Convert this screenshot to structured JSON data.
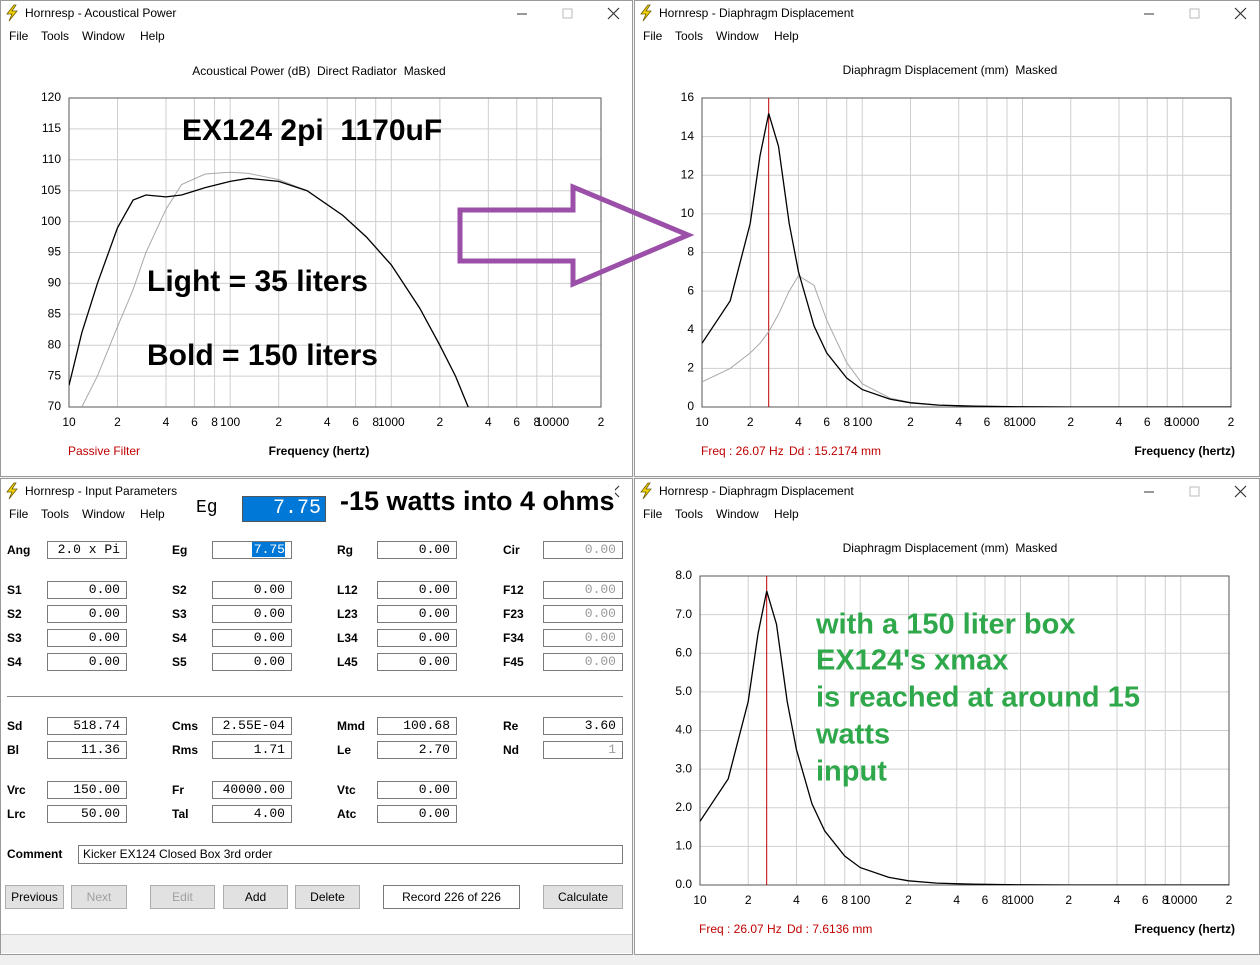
{
  "windows": [
    {
      "title": "Hornresp - Acoustical Power",
      "menu": [
        "File",
        "Tools",
        "Window",
        "Help"
      ]
    },
    {
      "title": "Hornresp - Diaphragm Displacement",
      "menu": [
        "File",
        "Tools",
        "Window",
        "Help"
      ]
    },
    {
      "title": "Hornresp - Input Parameters",
      "menu": [
        "File",
        "Tools",
        "Window",
        "Help"
      ]
    },
    {
      "title": "Hornresp - Diaphragm Displacement",
      "menu": [
        "File",
        "Tools",
        "Window",
        "Help"
      ]
    }
  ],
  "chart_data": [
    {
      "type": "line",
      "title": "Acoustical Power (dB)  Direct Radiator  Masked",
      "xlabel": "Frequency (hertz)",
      "xscale": "log",
      "grid": true,
      "xlim": [
        10,
        20000
      ],
      "ylim": [
        70,
        120
      ],
      "xticks": [
        10,
        {
          "value": 20,
          "label": "2"
        },
        {
          "value": 40,
          "label": "4"
        },
        {
          "value": 60,
          "label": "6"
        },
        {
          "value": 80,
          "label": "8"
        },
        100,
        {
          "value": 200,
          "label": "2"
        },
        {
          "value": 400,
          "label": "4"
        },
        {
          "value": 600,
          "label": "6"
        },
        {
          "value": 800,
          "label": "8"
        },
        1000,
        {
          "value": 2000,
          "label": "2"
        },
        {
          "value": 4000,
          "label": "4"
        },
        {
          "value": 6000,
          "label": "6"
        },
        {
          "value": 8000,
          "label": "8"
        },
        10000,
        {
          "value": 20000,
          "label": "2"
        }
      ],
      "yticks": [
        70,
        75,
        80,
        85,
        90,
        95,
        100,
        105,
        110,
        115,
        120
      ],
      "x": [
        10,
        12,
        15,
        20,
        25,
        30,
        40,
        50,
        70,
        100,
        130,
        200,
        300,
        500,
        700,
        1000,
        1500,
        2000,
        2500,
        3000
      ],
      "series": [
        {
          "color": "#a8a8a8",
          "line_width": 1,
          "values": [
            null,
            70,
            75,
            83,
            89,
            95,
            102,
            106,
            107.7,
            108,
            107.8,
            106.8,
            105,
            101,
            97.5,
            93,
            86,
            80,
            75,
            70
          ]
        },
        {
          "color": "#000000",
          "line_width": 1.3,
          "values": [
            73.5,
            82,
            90,
            99,
            103.5,
            104.3,
            104,
            104.3,
            105.5,
            106.5,
            107,
            106.5,
            105,
            101,
            97.5,
            93,
            86,
            80,
            75,
            70
          ]
        }
      ],
      "annotations": [
        "EX124 2pi  1170uF",
        "Light = 35 liters",
        "Bold = 150 liters"
      ],
      "annotation_color": "#000000",
      "footnote": "Passive Filter",
      "footnote_color": "#c00000"
    },
    {
      "type": "line",
      "title": "Diaphragm Displacement (mm)  Masked",
      "xlabel": "Frequency (hertz)",
      "xscale": "log",
      "grid": true,
      "xlim": [
        10,
        20000
      ],
      "ylim": [
        0,
        16
      ],
      "xticks": [
        10,
        {
          "value": 20,
          "label": "2"
        },
        {
          "value": 40,
          "label": "4"
        },
        {
          "value": 60,
          "label": "6"
        },
        {
          "value": 80,
          "label": "8"
        },
        100,
        {
          "value": 200,
          "label": "2"
        },
        {
          "value": 400,
          "label": "4"
        },
        {
          "value": 600,
          "label": "6"
        },
        {
          "value": 800,
          "label": "8"
        },
        1000,
        {
          "value": 2000,
          "label": "2"
        },
        {
          "value": 4000,
          "label": "4"
        },
        {
          "value": 6000,
          "label": "6"
        },
        {
          "value": 8000,
          "label": "8"
        },
        10000,
        {
          "value": 20000,
          "label": "2"
        }
      ],
      "yticks": [
        0,
        2,
        4,
        6,
        8,
        10,
        12,
        14,
        16
      ],
      "x": [
        10,
        15,
        20,
        23,
        26.07,
        30,
        35,
        40,
        50,
        60,
        80,
        100,
        150,
        200,
        300,
        500,
        1000,
        2000,
        5000,
        20000
      ],
      "series": [
        {
          "color": "#a8a8a8",
          "line_width": 1,
          "values": [
            1.3,
            2,
            2.8,
            3.3,
            3.9,
            4.8,
            6,
            6.8,
            6.3,
            4.5,
            2.3,
            1.2,
            0.45,
            0.24,
            0.1,
            0.04,
            0.01,
            0,
            0,
            0
          ]
        },
        {
          "color": "#000000",
          "line_width": 1.3,
          "values": [
            3.3,
            5.5,
            9.5,
            13,
            15.2,
            13.5,
            9.5,
            7,
            4.2,
            2.8,
            1.5,
            0.9,
            0.4,
            0.22,
            0.1,
            0.04,
            0.01,
            0,
            0,
            0
          ]
        }
      ],
      "cursor": {
        "x": 26.07,
        "color": "#c00000",
        "freq_label": "Freq : 26.07 Hz",
        "dd_label": "Dd : 15.2174 mm"
      }
    },
    {
      "type": "line",
      "title": "Diaphragm Displacement (mm)  Masked",
      "xlabel": "Frequency (hertz)",
      "xscale": "log",
      "grid": true,
      "xlim": [
        10,
        20000
      ],
      "ylim": [
        0,
        8
      ],
      "xticks": [
        10,
        {
          "value": 20,
          "label": "2"
        },
        {
          "value": 40,
          "label": "4"
        },
        {
          "value": 60,
          "label": "6"
        },
        {
          "value": 80,
          "label": "8"
        },
        100,
        {
          "value": 200,
          "label": "2"
        },
        {
          "value": 400,
          "label": "4"
        },
        {
          "value": 600,
          "label": "6"
        },
        {
          "value": 800,
          "label": "8"
        },
        1000,
        {
          "value": 2000,
          "label": "2"
        },
        {
          "value": 4000,
          "label": "4"
        },
        {
          "value": 6000,
          "label": "6"
        },
        {
          "value": 8000,
          "label": "8"
        },
        10000,
        {
          "value": 20000,
          "label": "2"
        }
      ],
      "yticks": [
        {
          "value": 0,
          "label": "0.0"
        },
        {
          "value": 1,
          "label": "1.0"
        },
        {
          "value": 2,
          "label": "2.0"
        },
        {
          "value": 3,
          "label": "3.0"
        },
        {
          "value": 4,
          "label": "4.0"
        },
        {
          "value": 5,
          "label": "5.0"
        },
        {
          "value": 6,
          "label": "6.0"
        },
        {
          "value": 7,
          "label": "7.0"
        },
        {
          "value": 8,
          "label": "8.0"
        }
      ],
      "x": [
        10,
        15,
        20,
        23,
        26.07,
        30,
        35,
        40,
        50,
        60,
        80,
        100,
        150,
        200,
        300,
        500,
        1000,
        2000,
        5000,
        20000
      ],
      "series": [
        {
          "color": "#000000",
          "line_width": 1.3,
          "values": [
            1.65,
            2.75,
            4.75,
            6.5,
            7.61,
            6.75,
            4.75,
            3.5,
            2.1,
            1.4,
            0.75,
            0.45,
            0.2,
            0.11,
            0.05,
            0.02,
            0.005,
            0,
            0,
            0
          ]
        }
      ],
      "cursor": {
        "x": 26.07,
        "color": "#c00000",
        "freq_label": "Freq : 26.07 Hz",
        "dd_label": "Dd : 7.6136 mm"
      },
      "annotations": [
        "with a 150 liter box",
        "EX124's xmax",
        "is reached at around 15",
        "watts",
        "input"
      ],
      "annotation_color": "#2ea84a"
    }
  ],
  "input_parameters": {
    "rows": [
      [
        {
          "label": "Ang",
          "value": "2.0 x Pi"
        },
        {
          "label": "Eg",
          "value": "7.75",
          "selected": true
        },
        {
          "label": "Rg",
          "value": "0.00"
        },
        {
          "label": "Cir",
          "value": "0.00",
          "enabled": false
        }
      ],
      [
        {
          "label": "S1",
          "value": "0.00"
        },
        {
          "label": "S2",
          "value": "0.00"
        },
        {
          "label": "L12",
          "value": "0.00"
        },
        {
          "label": "F12",
          "value": "0.00",
          "enabled": false
        }
      ],
      [
        {
          "label": "S2",
          "value": "0.00"
        },
        {
          "label": "S3",
          "value": "0.00"
        },
        {
          "label": "L23",
          "value": "0.00"
        },
        {
          "label": "F23",
          "value": "0.00",
          "enabled": false
        }
      ],
      [
        {
          "label": "S3",
          "value": "0.00"
        },
        {
          "label": "S4",
          "value": "0.00"
        },
        {
          "label": "L34",
          "value": "0.00"
        },
        {
          "label": "F34",
          "value": "0.00",
          "enabled": false
        }
      ],
      [
        {
          "label": "S4",
          "value": "0.00"
        },
        {
          "label": "S5",
          "value": "0.00"
        },
        {
          "label": "L45",
          "value": "0.00"
        },
        {
          "label": "F45",
          "value": "0.00",
          "enabled": false
        }
      ],
      [
        {
          "label": "Sd",
          "value": "518.74"
        },
        {
          "label": "Cms",
          "value": "2.55E-04"
        },
        {
          "label": "Mmd",
          "value": "100.68"
        },
        {
          "label": "Re",
          "value": "3.60"
        }
      ],
      [
        {
          "label": "Bl",
          "value": "11.36"
        },
        {
          "label": "Rms",
          "value": "1.71"
        },
        {
          "label": "Le",
          "value": "2.70"
        },
        {
          "label": "Nd",
          "value": "1",
          "enabled": false
        }
      ],
      [
        {
          "label": "Vrc",
          "value": "150.00"
        },
        {
          "label": "Fr",
          "value": "40000.00"
        },
        {
          "label": "Vtc",
          "value": "0.00"
        }
      ],
      [
        {
          "label": "Lrc",
          "value": "50.00"
        },
        {
          "label": "Tal",
          "value": "4.00"
        },
        {
          "label": "Atc",
          "value": "0.00"
        }
      ]
    ],
    "comment_label": "Comment",
    "comment": "Kicker EX124 Closed Box 3rd order",
    "buttons": [
      {
        "text": "Previous",
        "enabled": true
      },
      {
        "text": "Next",
        "enabled": false
      },
      {
        "text": "Edit",
        "enabled": false
      },
      {
        "text": "Add",
        "enabled": true
      },
      {
        "text": "Delete",
        "enabled": true
      },
      {
        "text": "Calculate",
        "enabled": true
      }
    ],
    "record": "Record 226 of 226"
  },
  "overlay": {
    "label": "Eg",
    "value": "7.75",
    "note": "-15 watts into 4 ohms"
  }
}
